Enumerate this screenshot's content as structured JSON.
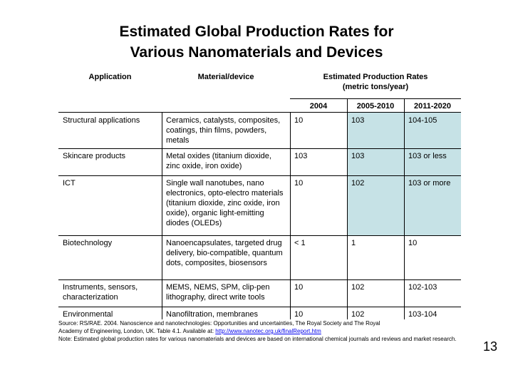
{
  "title": {
    "line1": "Estimated Global Production Rates for",
    "line2": "Various Nanomaterials and Devices"
  },
  "table": {
    "headers": {
      "application": "Application",
      "material": "Material/device",
      "rates": "Estimated Production Rates",
      "rates_unit": "(metric tons/year)",
      "years": [
        "2004",
        "2005-2010",
        "2011-2020"
      ]
    },
    "rows": [
      {
        "application": "Structural applications",
        "material": "Ceramics, catalysts, composites, coatings, thin films, powders, metals",
        "y2004": "10",
        "y2005": "103",
        "y2011": "104-105"
      },
      {
        "application": "Skincare products",
        "material": "Metal oxides (titanium dioxide, zinc oxide, iron oxide)",
        "y2004": "103",
        "y2005": "103",
        "y2011": "103 or less"
      },
      {
        "application": "ICT",
        "material": "Single wall nanotubes, nano electronics, opto-electro materials (titanium dioxide, zinc oxide, iron oxide), organic light-emitting diodes (OLEDs)",
        "y2004": "10",
        "y2005": "102",
        "y2011": "103 or more"
      },
      {
        "application": "Biotechnology",
        "material": "Nanoencapsulates, targeted drug delivery, bio-compatible, quantum dots, composites, biosensors",
        "y2004": "< 1",
        "y2005": "1",
        "y2011": "10"
      },
      {
        "application": "Instruments, sensors, characterization",
        "material": "MEMS, NEMS, SPM, clip-pen lithography, direct write tools",
        "y2004": "10",
        "y2005": "102",
        "y2011": "102-103"
      },
      {
        "application": "Environmental",
        "material": "Nanofiltration, membranes",
        "y2004": "10",
        "y2005": "102",
        "y2011": "103-104"
      }
    ]
  },
  "source": {
    "line1": "Source: RS/RAE. 2004. Nanoscience and nanotechnologies: Opportunities and uncertainties, The Royal Society and The Royal",
    "line2_prefix": "Academy of Engineering, London, UK. Table 4.1. Available at: ",
    "link": "http://www.nanotec.org.uk/finalReport.htm",
    "line3": "Note: Estimated global production rates for various nanomaterials and devices are based on international chemical journals and reviews and market research."
  },
  "page_number": "13"
}
